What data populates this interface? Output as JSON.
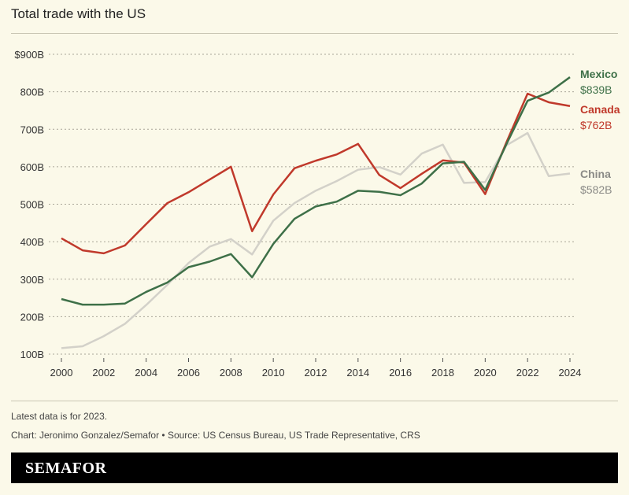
{
  "title": "Total trade with the US",
  "note": "Latest data is for 2023.",
  "credit": "Chart: Jeronimo Gonzalez/Semafor • Source: US Census Bureau, US Trade Representative, CRS",
  "brand": "SEMAFOR",
  "chart_data": {
    "type": "line",
    "title": "Total trade with the US",
    "x": [
      2000,
      2001,
      2002,
      2003,
      2004,
      2005,
      2006,
      2007,
      2008,
      2009,
      2010,
      2011,
      2012,
      2013,
      2014,
      2015,
      2016,
      2017,
      2018,
      2019,
      2020,
      2021,
      2022,
      2023,
      2024
    ],
    "xticks": [
      "2000",
      "2002",
      "2004",
      "2006",
      "2008",
      "2010",
      "2012",
      "2014",
      "2016",
      "2018",
      "2020",
      "2022",
      "2024"
    ],
    "yticks": [
      "$900B",
      "800B",
      "700B",
      "600B",
      "500B",
      "400B",
      "300B",
      "200B",
      "100B"
    ],
    "ylim": [
      100,
      900
    ],
    "grid": true,
    "series": [
      {
        "name": "China",
        "end_label": "$582B",
        "color": "#d3d1c9",
        "label_color": "#8a8a86",
        "values": [
          116,
          121,
          148,
          181,
          231,
          285,
          343,
          387,
          407,
          366,
          456,
          503,
          536,
          562,
          592,
          599,
          579,
          635,
          659,
          557,
          559,
          657,
          690,
          575,
          582
        ]
      },
      {
        "name": "Canada",
        "end_label": "$762B",
        "color": "#c0392b",
        "label_color": "#c0392b",
        "values": [
          409,
          377,
          369,
          390,
          447,
          503,
          532,
          566,
          600,
          428,
          526,
          596,
          616,
          633,
          661,
          578,
          543,
          581,
          617,
          611,
          527,
          665,
          795,
          772,
          762
        ]
      },
      {
        "name": "Mexico",
        "end_label": "$839B",
        "color": "#3e7048",
        "label_color": "#3e7048",
        "values": [
          247,
          232,
          232,
          235,
          266,
          291,
          332,
          347,
          367,
          305,
          394,
          461,
          494,
          507,
          536,
          533,
          524,
          555,
          609,
          613,
          538,
          660,
          776,
          798,
          839
        ]
      }
    ]
  }
}
